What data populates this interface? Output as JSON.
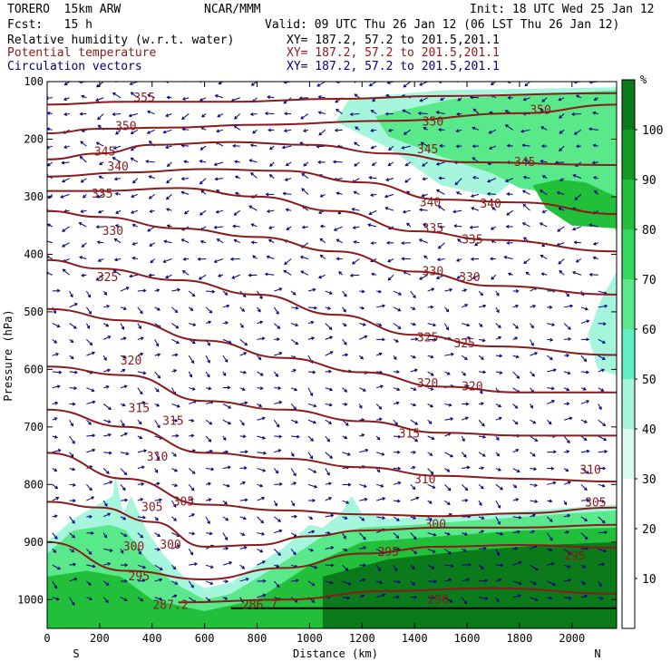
{
  "header": {
    "model": "TORERO  15km ARW",
    "org": "NCAR/MMM",
    "init": "Init: 18 UTC Wed 25 Jan 12",
    "fcst": "Fcst:   15 h",
    "valid": "Valid: 09 UTC Thu 26 Jan 12 (06 LST Thu 26 Jan 12)",
    "fields": [
      {
        "label": "Relative humidity (w.r.t. water)",
        "xy": "XY= 187.2, 57.2 to 201.5,201.1",
        "color": "#000000"
      },
      {
        "label": "Potential temperature",
        "xy": "XY= 187.2, 57.2 to 201.5,201.1",
        "color": "#8b1a1a"
      },
      {
        "label": "Circulation vectors",
        "xy": "XY= 187.2, 57.2 to 201.5,201.1",
        "color": "#00007f"
      }
    ]
  },
  "chart_data": {
    "type": "heatmap",
    "title": "",
    "xlabel": "Distance (km)",
    "ylabel": "Pressure (hPa)",
    "xlim": [
      0,
      2170
    ],
    "ylim": [
      1050,
      100
    ],
    "x_ticks": [
      0,
      200,
      400,
      600,
      800,
      1000,
      1200,
      1400,
      1600,
      1800,
      2000
    ],
    "y_ticks": [
      100,
      200,
      300,
      400,
      500,
      600,
      700,
      800,
      900,
      1000
    ],
    "x_end_labels": {
      "left": "S",
      "right": "N"
    },
    "colorbar": {
      "unit": "%",
      "ticks": [
        10,
        20,
        30,
        40,
        50,
        60,
        70,
        80,
        90,
        100
      ],
      "levels": [
        {
          "from": 0,
          "to": 30,
          "color": "#ffffff"
        },
        {
          "from": 30,
          "to": 40,
          "color": "#d9fbf0"
        },
        {
          "from": 40,
          "to": 50,
          "color": "#a6f6dd"
        },
        {
          "from": 50,
          "to": 60,
          "color": "#5ef0c6"
        },
        {
          "from": 60,
          "to": 70,
          "color": "#59e88a"
        },
        {
          "from": 70,
          "to": 80,
          "color": "#33d95c"
        },
        {
          "from": 80,
          "to": 90,
          "color": "#22c03a"
        },
        {
          "from": 90,
          "to": 100,
          "color": "#109a23"
        },
        {
          "from": 100,
          "to": 110,
          "color": "#0b7a1a"
        }
      ]
    },
    "theta_contours": [
      {
        "value": 355,
        "points": [
          [
            0,
            140
          ],
          [
            300,
            135
          ],
          [
            700,
            135
          ],
          [
            1100,
            130
          ],
          [
            1500,
            125
          ],
          [
            2170,
            120
          ]
        ],
        "labels": [
          [
            370,
            128
          ]
        ]
      },
      {
        "value": 350,
        "points": [
          [
            0,
            190
          ],
          [
            200,
            182
          ],
          [
            450,
            180
          ],
          [
            800,
            175
          ],
          [
            1300,
            168
          ],
          [
            1800,
            155
          ],
          [
            2170,
            140
          ]
        ],
        "labels": [
          [
            300,
            178
          ],
          [
            1470,
            170
          ],
          [
            1880,
            150
          ]
        ]
      },
      {
        "value": 345,
        "points": [
          [
            0,
            235
          ],
          [
            200,
            225
          ],
          [
            400,
            210
          ],
          [
            700,
            205
          ],
          [
            1000,
            210
          ],
          [
            1300,
            225
          ],
          [
            1600,
            240
          ],
          [
            2170,
            245
          ]
        ],
        "labels": [
          [
            220,
            222
          ],
          [
            1450,
            218
          ],
          [
            1820,
            240
          ]
        ]
      },
      {
        "value": 340,
        "points": [
          [
            0,
            265
          ],
          [
            300,
            258
          ],
          [
            600,
            252
          ],
          [
            900,
            255
          ],
          [
            1200,
            275
          ],
          [
            1500,
            305
          ],
          [
            1800,
            310
          ],
          [
            2170,
            330
          ]
        ],
        "labels": [
          [
            270,
            248
          ],
          [
            1460,
            310
          ],
          [
            1690,
            313
          ]
        ]
      },
      {
        "value": 335,
        "points": [
          [
            0,
            290
          ],
          [
            200,
            290
          ],
          [
            500,
            285
          ],
          [
            800,
            300
          ],
          [
            1100,
            325
          ],
          [
            1400,
            360
          ],
          [
            1700,
            375
          ],
          [
            2170,
            395
          ]
        ],
        "labels": [
          [
            210,
            295
          ],
          [
            1470,
            355
          ],
          [
            1620,
            375
          ]
        ]
      },
      {
        "value": 330,
        "points": [
          [
            0,
            325
          ],
          [
            200,
            335
          ],
          [
            500,
            355
          ],
          [
            800,
            370
          ],
          [
            1100,
            395
          ],
          [
            1400,
            430
          ],
          [
            1700,
            455
          ],
          [
            2170,
            470
          ]
        ],
        "labels": [
          [
            250,
            360
          ],
          [
            1470,
            430
          ],
          [
            1610,
            440
          ]
        ]
      },
      {
        "value": 325,
        "points": [
          [
            0,
            410
          ],
          [
            200,
            425
          ],
          [
            500,
            445
          ],
          [
            800,
            470
          ],
          [
            1100,
            505
          ],
          [
            1400,
            540
          ],
          [
            1700,
            560
          ],
          [
            2170,
            575
          ]
        ],
        "labels": [
          [
            230,
            440
          ],
          [
            1450,
            545
          ],
          [
            1590,
            555
          ]
        ]
      },
      {
        "value": 320,
        "points": [
          [
            0,
            495
          ],
          [
            300,
            515
          ],
          [
            600,
            550
          ],
          [
            900,
            580
          ],
          [
            1200,
            605
          ],
          [
            1500,
            630
          ],
          [
            1800,
            640
          ],
          [
            2170,
            640
          ]
        ],
        "labels": [
          [
            320,
            585
          ],
          [
            1450,
            625
          ],
          [
            1620,
            630
          ]
        ]
      },
      {
        "value": 315,
        "points": [
          [
            0,
            595
          ],
          [
            300,
            610
          ],
          [
            600,
            655
          ],
          [
            900,
            670
          ],
          [
            1200,
            690
          ],
          [
            1500,
            710
          ],
          [
            1800,
            715
          ],
          [
            2170,
            715
          ]
        ],
        "labels": [
          [
            350,
            668
          ],
          [
            480,
            690
          ],
          [
            1380,
            712
          ]
        ]
      },
      {
        "value": 310,
        "points": [
          [
            0,
            670
          ],
          [
            300,
            700
          ],
          [
            600,
            745
          ],
          [
            900,
            755
          ],
          [
            1200,
            770
          ],
          [
            1500,
            785
          ],
          [
            1800,
            790
          ],
          [
            2170,
            795
          ]
        ],
        "labels": [
          [
            420,
            752
          ],
          [
            1440,
            792
          ],
          [
            2070,
            775
          ]
        ]
      },
      {
        "value": 305,
        "points": [
          [
            0,
            745
          ],
          [
            300,
            790
          ],
          [
            600,
            835
          ],
          [
            900,
            845
          ],
          [
            1200,
            852
          ],
          [
            1500,
            855
          ],
          [
            1800,
            850
          ],
          [
            2170,
            840
          ]
        ],
        "labels": [
          [
            400,
            840
          ],
          [
            520,
            830
          ],
          [
            2090,
            832
          ]
        ]
      },
      {
        "value": 300,
        "points": [
          [
            0,
            830
          ],
          [
            200,
            840
          ],
          [
            400,
            865
          ],
          [
            600,
            908
          ],
          [
            800,
            905
          ],
          [
            1000,
            890
          ],
          [
            1200,
            880
          ],
          [
            1500,
            875
          ],
          [
            1800,
            875
          ],
          [
            2170,
            870
          ]
        ],
        "labels": [
          [
            330,
            908
          ],
          [
            470,
            905
          ],
          [
            1480,
            870
          ]
        ]
      },
      {
        "value": 295,
        "points": [
          [
            0,
            900
          ],
          [
            300,
            950
          ],
          [
            600,
            965
          ],
          [
            900,
            945
          ],
          [
            1200,
            920
          ],
          [
            1500,
            908
          ],
          [
            1800,
            905
          ],
          [
            2170,
            910
          ]
        ],
        "labels": [
          [
            350,
            960
          ],
          [
            1300,
            918
          ],
          [
            2010,
            925
          ]
        ]
      },
      {
        "value": 290,
        "points": [
          [
            500,
            1005
          ],
          [
            900,
            1000
          ],
          [
            1300,
            985
          ],
          [
            1700,
            980
          ],
          [
            2170,
            990
          ]
        ],
        "labels": [
          [
            1490,
            1000
          ]
        ]
      },
      {
        "value": 287.2,
        "points": [],
        "labels": [
          [
            470,
            1010
          ]
        ]
      },
      {
        "value": 286.7,
        "points": [],
        "labels": [
          [
            810,
            1010
          ]
        ]
      }
    ],
    "theta_color": "#8b1a1a",
    "vector_color": "#00007f",
    "surface_pressure_hPa": 1015,
    "humid_regions": [
      {
        "rh": 40,
        "points": [
          [
            1150,
            130
          ],
          [
            1500,
            115
          ],
          [
            2170,
            110
          ],
          [
            2170,
            430
          ],
          [
            2110,
            480
          ],
          [
            2060,
            540
          ],
          [
            2100,
            600
          ],
          [
            2170,
            610
          ],
          [
            2170,
            140
          ],
          [
            1900,
            230
          ],
          [
            1700,
            300
          ],
          [
            1500,
            280
          ],
          [
            1300,
            215
          ],
          [
            1100,
            170
          ]
        ]
      },
      {
        "rh": 60,
        "points": [
          [
            1250,
            160
          ],
          [
            1550,
            130
          ],
          [
            2170,
            115
          ],
          [
            2170,
            360
          ],
          [
            2120,
            320
          ],
          [
            2000,
            300
          ],
          [
            1800,
            285
          ],
          [
            1700,
            260
          ],
          [
            1500,
            230
          ],
          [
            1300,
            195
          ]
        ]
      },
      {
        "rh": 80,
        "points": [
          [
            1850,
            280
          ],
          [
            1950,
            270
          ],
          [
            2050,
            275
          ],
          [
            2170,
            300
          ],
          [
            2170,
            355
          ],
          [
            2000,
            350
          ],
          [
            1900,
            320
          ]
        ]
      },
      {
        "rh": 40,
        "points": [
          [
            0,
            900
          ],
          [
            100,
            860
          ],
          [
            250,
            820
          ],
          [
            260,
            785
          ],
          [
            290,
            850
          ],
          [
            320,
            820
          ],
          [
            380,
            880
          ],
          [
            440,
            920
          ],
          [
            520,
            960
          ],
          [
            600,
            980
          ],
          [
            700,
            970
          ],
          [
            900,
            910
          ],
          [
            1000,
            870
          ],
          [
            1050,
            875
          ],
          [
            1120,
            850
          ],
          [
            1160,
            820
          ],
          [
            1200,
            850
          ],
          [
            1300,
            860
          ],
          [
            1450,
            855
          ],
          [
            1700,
            850
          ],
          [
            2000,
            840
          ],
          [
            2170,
            835
          ],
          [
            2170,
            1050
          ],
          [
            0,
            1050
          ]
        ]
      },
      {
        "rh": 60,
        "points": [
          [
            0,
            920
          ],
          [
            100,
            880
          ],
          [
            240,
            870
          ],
          [
            300,
            880
          ],
          [
            380,
            930
          ],
          [
            480,
            970
          ],
          [
            600,
            1000
          ],
          [
            700,
            990
          ],
          [
            900,
            935
          ],
          [
            1050,
            890
          ],
          [
            1200,
            875
          ],
          [
            1400,
            870
          ],
          [
            1700,
            860
          ],
          [
            2000,
            850
          ],
          [
            2170,
            845
          ],
          [
            2170,
            1050
          ],
          [
            0,
            1050
          ]
        ]
      },
      {
        "rh": 80,
        "points": [
          [
            0,
            960
          ],
          [
            150,
            950
          ],
          [
            280,
            960
          ],
          [
            400,
            1000
          ],
          [
            600,
            1020
          ],
          [
            800,
            1000
          ],
          [
            1000,
            940
          ],
          [
            1200,
            900
          ],
          [
            1500,
            890
          ],
          [
            1800,
            880
          ],
          [
            2170,
            875
          ],
          [
            2170,
            1050
          ],
          [
            0,
            1050
          ]
        ]
      },
      {
        "rh": 100,
        "points": [
          [
            1050,
            960
          ],
          [
            1300,
            930
          ],
          [
            1600,
            915
          ],
          [
            1900,
            905
          ],
          [
            2170,
            900
          ],
          [
            2170,
            1050
          ],
          [
            1050,
            1050
          ]
        ]
      }
    ]
  }
}
